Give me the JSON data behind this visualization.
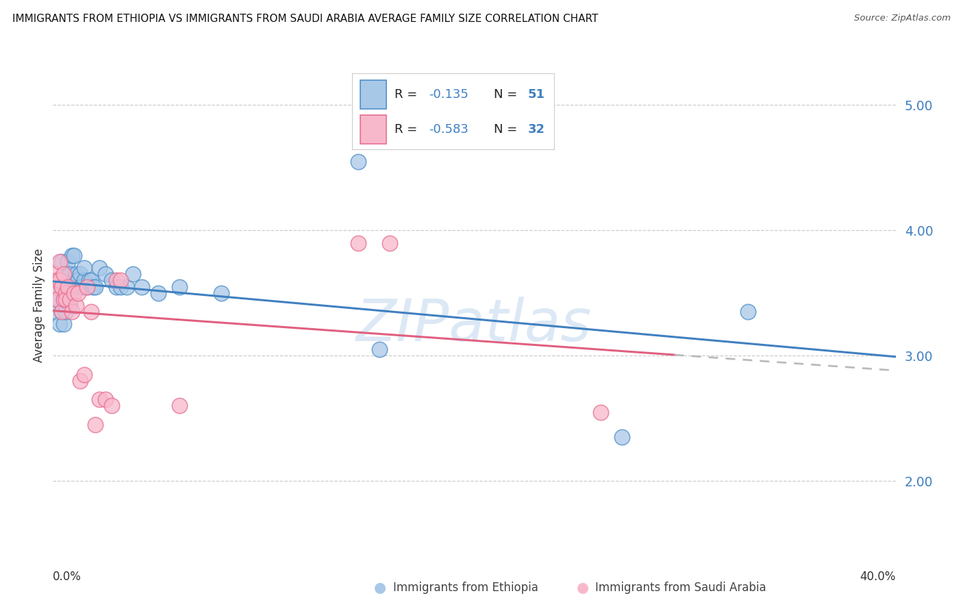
{
  "title": "IMMIGRANTS FROM ETHIOPIA VS IMMIGRANTS FROM SAUDI ARABIA AVERAGE FAMILY SIZE CORRELATION CHART",
  "source": "Source: ZipAtlas.com",
  "ylabel": "Average Family Size",
  "yticks": [
    2.0,
    3.0,
    4.0,
    5.0
  ],
  "xlim": [
    0.0,
    0.4
  ],
  "ylim": [
    1.45,
    5.35
  ],
  "ethiopia_fill": "#a8c8e8",
  "ethiopia_edge": "#5090c8",
  "ethiopia_line": "#4080c0",
  "saudi_fill": "#f8b8cc",
  "saudi_edge": "#e87090",
  "saudi_line": "#e06080",
  "ytick_color": "#4080c0",
  "grid_color": "#cccccc",
  "bg_color": "#ffffff",
  "watermark_text": "ZIPatlas",
  "watermark_color": "#dce8f5",
  "eth_x": [
    0.001,
    0.002,
    0.002,
    0.003,
    0.003,
    0.004,
    0.004,
    0.004,
    0.005,
    0.005,
    0.005,
    0.006,
    0.006,
    0.006,
    0.007,
    0.007,
    0.007,
    0.008,
    0.008,
    0.009,
    0.009,
    0.01,
    0.01,
    0.011,
    0.011,
    0.012,
    0.013,
    0.013,
    0.014,
    0.015,
    0.015,
    0.016,
    0.017,
    0.018,
    0.019,
    0.02,
    0.022,
    0.025,
    0.028,
    0.03,
    0.032,
    0.035,
    0.038,
    0.042,
    0.05,
    0.06,
    0.08,
    0.145,
    0.155,
    0.27,
    0.33
  ],
  "eth_y": [
    3.35,
    3.45,
    3.55,
    3.25,
    3.6,
    3.35,
    3.55,
    3.75,
    3.25,
    3.45,
    3.6,
    3.35,
    3.5,
    3.65,
    3.5,
    3.65,
    3.75,
    3.4,
    3.65,
    3.55,
    3.8,
    3.6,
    3.8,
    3.55,
    3.65,
    3.6,
    3.55,
    3.65,
    3.55,
    3.6,
    3.7,
    3.55,
    3.6,
    3.6,
    3.55,
    3.55,
    3.7,
    3.65,
    3.6,
    3.55,
    3.55,
    3.55,
    3.65,
    3.55,
    3.5,
    3.55,
    3.5,
    4.55,
    3.05,
    2.35,
    3.35
  ],
  "sau_x": [
    0.001,
    0.001,
    0.002,
    0.002,
    0.003,
    0.003,
    0.004,
    0.004,
    0.005,
    0.005,
    0.006,
    0.006,
    0.007,
    0.008,
    0.009,
    0.01,
    0.011,
    0.012,
    0.013,
    0.015,
    0.016,
    0.018,
    0.02,
    0.022,
    0.025,
    0.028,
    0.03,
    0.032,
    0.06,
    0.145,
    0.16,
    0.26
  ],
  "sau_y": [
    3.55,
    3.65,
    3.45,
    3.6,
    3.6,
    3.75,
    3.35,
    3.55,
    3.45,
    3.65,
    3.5,
    3.45,
    3.55,
    3.45,
    3.35,
    3.5,
    3.4,
    3.5,
    2.8,
    2.85,
    3.55,
    3.35,
    2.45,
    2.65,
    2.65,
    2.6,
    3.6,
    3.6,
    2.6,
    3.9,
    3.9,
    2.55
  ],
  "legend_eth_r": "R =  -0.135",
  "legend_eth_n": "N = 51",
  "legend_sau_r": "R =  -0.583",
  "legend_sau_n": "N = 32"
}
